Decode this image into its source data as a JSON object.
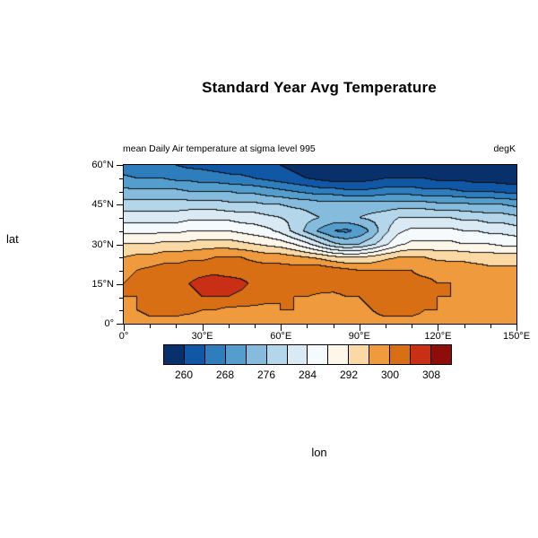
{
  "chart_data": {
    "type": "filled_contour",
    "title": "Standard Year Avg Temperature",
    "left_subtitle": "mean Daily Air temperature at sigma level 995",
    "right_subtitle": "degK",
    "xlabel": "lon",
    "ylabel": "lat",
    "units": "degK",
    "xlim": [
      0,
      150
    ],
    "ylim": [
      0,
      60
    ],
    "xticks": {
      "values": [
        0,
        30,
        60,
        90,
        120,
        150
      ],
      "labels": [
        "0°",
        "30°E",
        "60°E",
        "90°E",
        "120°E",
        "150°E"
      ]
    },
    "yticks": {
      "values": [
        0,
        15,
        30,
        45,
        60
      ],
      "labels": [
        "0°",
        "15°N",
        "30°N",
        "45°N",
        "60°N"
      ]
    },
    "x_minor_interval": 10,
    "y_minor_interval": 5,
    "levels": [
      260,
      264,
      268,
      272,
      276,
      280,
      284,
      288,
      292,
      296,
      300,
      304,
      308
    ],
    "colorbar_labels": [
      "260",
      "268",
      "276",
      "284",
      "292",
      "300",
      "308"
    ],
    "colors": [
      "#08306b",
      "#1057a5",
      "#2e7ebd",
      "#549ecd",
      "#85bcdd",
      "#b3d6ea",
      "#d9eaf5",
      "#f5fafd",
      "#fdf6e9",
      "#fbd9a4",
      "#ee9a3d",
      "#d96f14",
      "#c92f14",
      "#8e0d08"
    ],
    "contour_line_color": "#0f0f0f",
    "grid": {
      "lons": [
        0,
        5,
        10,
        15,
        20,
        25,
        30,
        35,
        40,
        45,
        50,
        55,
        60,
        65,
        70,
        75,
        80,
        85,
        90,
        95,
        100,
        105,
        110,
        115,
        120,
        125,
        130,
        135,
        140,
        145,
        150
      ],
      "lats": [
        0,
        5,
        10,
        15,
        20,
        25,
        30,
        35,
        40,
        45,
        50,
        55,
        60
      ],
      "values": [
        [
          298,
          298,
          299,
          299,
          299,
          298,
          298,
          298,
          298,
          298,
          298,
          299,
          299,
          299,
          298,
          298,
          298,
          298,
          298,
          299,
          299,
          299,
          299,
          299,
          298,
          298,
          298,
          298,
          298,
          298,
          298
        ],
        [
          299,
          300,
          301,
          301,
          301,
          301,
          300,
          300,
          299,
          299,
          299,
          299,
          300,
          300,
          299,
          299,
          299,
          299,
          299,
          300,
          301,
          301,
          301,
          300,
          300,
          299,
          299,
          299,
          299,
          299,
          299
        ],
        [
          300,
          300,
          301,
          302,
          302,
          303,
          304,
          304,
          304,
          303,
          302,
          301,
          300,
          300,
          300,
          299,
          299,
          300,
          300,
          301,
          301,
          302,
          301,
          301,
          300,
          300,
          299,
          299,
          299,
          299,
          299
        ],
        [
          300,
          301,
          302,
          302,
          303,
          304,
          305,
          306,
          306,
          305,
          303,
          302,
          302,
          302,
          303,
          303,
          302,
          302,
          301,
          301,
          302,
          302,
          301,
          301,
          300,
          300,
          299,
          299,
          298,
          298,
          298
        ],
        [
          299,
          300,
          301,
          302,
          302,
          303,
          303,
          303,
          302,
          302,
          302,
          302,
          302,
          302,
          303,
          303,
          302,
          301,
          300,
          300,
          300,
          300,
          300,
          299,
          299,
          298,
          298,
          298,
          297,
          297,
          297
        ],
        [
          296,
          297,
          297,
          298,
          298,
          299,
          299,
          300,
          300,
          300,
          299,
          298,
          298,
          297,
          296,
          295,
          293,
          292,
          292,
          293,
          295,
          296,
          296,
          296,
          295,
          295,
          295,
          294,
          294,
          294,
          294
        ],
        [
          292,
          292,
          292,
          293,
          293,
          293,
          294,
          294,
          294,
          293,
          292,
          291,
          290,
          288,
          285,
          281,
          277,
          275,
          276,
          279,
          283,
          287,
          289,
          289,
          289,
          289,
          288,
          288,
          288,
          287,
          287
        ],
        [
          287,
          287,
          287,
          287,
          287,
          288,
          288,
          288,
          288,
          287,
          286,
          285,
          283,
          279,
          275,
          271,
          268,
          267,
          269,
          273,
          279,
          283,
          285,
          285,
          285,
          285,
          284,
          284,
          283,
          283,
          282
        ],
        [
          282,
          282,
          282,
          282,
          282,
          283,
          283,
          283,
          283,
          282,
          282,
          281,
          280,
          279,
          277,
          276,
          275,
          275,
          276,
          277,
          278,
          280,
          280,
          280,
          280,
          280,
          279,
          279,
          278,
          278,
          277
        ],
        [
          278,
          278,
          278,
          278,
          278,
          278,
          278,
          278,
          277,
          277,
          277,
          276,
          276,
          275,
          275,
          274,
          274,
          274,
          274,
          274,
          274,
          274,
          274,
          274,
          273,
          273,
          273,
          272,
          272,
          272,
          271
        ],
        [
          273,
          273,
          273,
          273,
          273,
          272,
          272,
          272,
          272,
          271,
          271,
          270,
          269,
          268,
          267,
          266,
          266,
          265,
          265,
          265,
          266,
          266,
          266,
          265,
          265,
          265,
          264,
          264,
          264,
          263,
          263
        ],
        [
          269,
          268,
          268,
          268,
          267,
          267,
          266,
          266,
          265,
          265,
          264,
          263,
          262,
          261,
          260,
          259,
          258,
          258,
          258,
          259,
          260,
          260,
          260,
          260,
          259,
          259,
          259,
          258,
          258,
          258,
          257
        ],
        [
          265,
          265,
          264,
          264,
          264,
          263,
          263,
          262,
          262,
          261,
          261,
          260,
          260,
          259,
          258,
          257,
          256,
          256,
          256,
          256,
          255,
          255,
          255,
          255,
          255,
          254,
          254,
          254,
          254,
          253,
          253
        ]
      ]
    }
  }
}
